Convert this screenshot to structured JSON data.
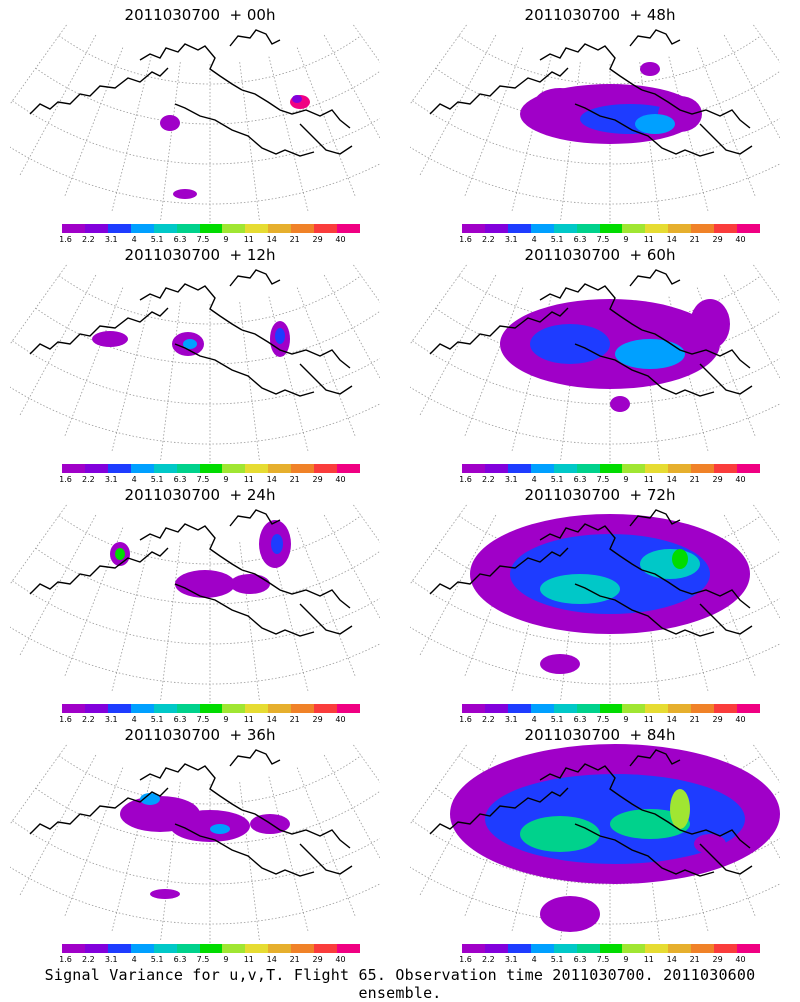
{
  "panels": [
    {
      "title": "2011030700  + 00h",
      "lead": 0
    },
    {
      "title": "2011030700  + 48h",
      "lead": 48
    },
    {
      "title": "2011030700  + 12h",
      "lead": 12
    },
    {
      "title": "2011030700  + 60h",
      "lead": 60
    },
    {
      "title": "2011030700  + 24h",
      "lead": 24
    },
    {
      "title": "2011030700  + 72h",
      "lead": 72
    },
    {
      "title": "2011030700  + 36h",
      "lead": 36
    },
    {
      "title": "2011030700  + 84h",
      "lead": 84
    }
  ],
  "colorbar": {
    "labels": [
      "1.6",
      "2.2",
      "3.1",
      "4",
      "5.1",
      "6.3",
      "7.5",
      "9",
      "11",
      "14",
      "21",
      "29",
      "40"
    ],
    "colors": [
      "#a000c8",
      "#8200dc",
      "#1e3cff",
      "#00a0ff",
      "#00c8c8",
      "#00d28c",
      "#00dc00",
      "#a0e632",
      "#e6dc32",
      "#e6af2d",
      "#f08228",
      "#fa3c3c",
      "#f00082"
    ]
  },
  "footer": "Signal Variance for u,v,T. Flight 65. Observation time 2011030700. 2011030600 ensemble."
}
